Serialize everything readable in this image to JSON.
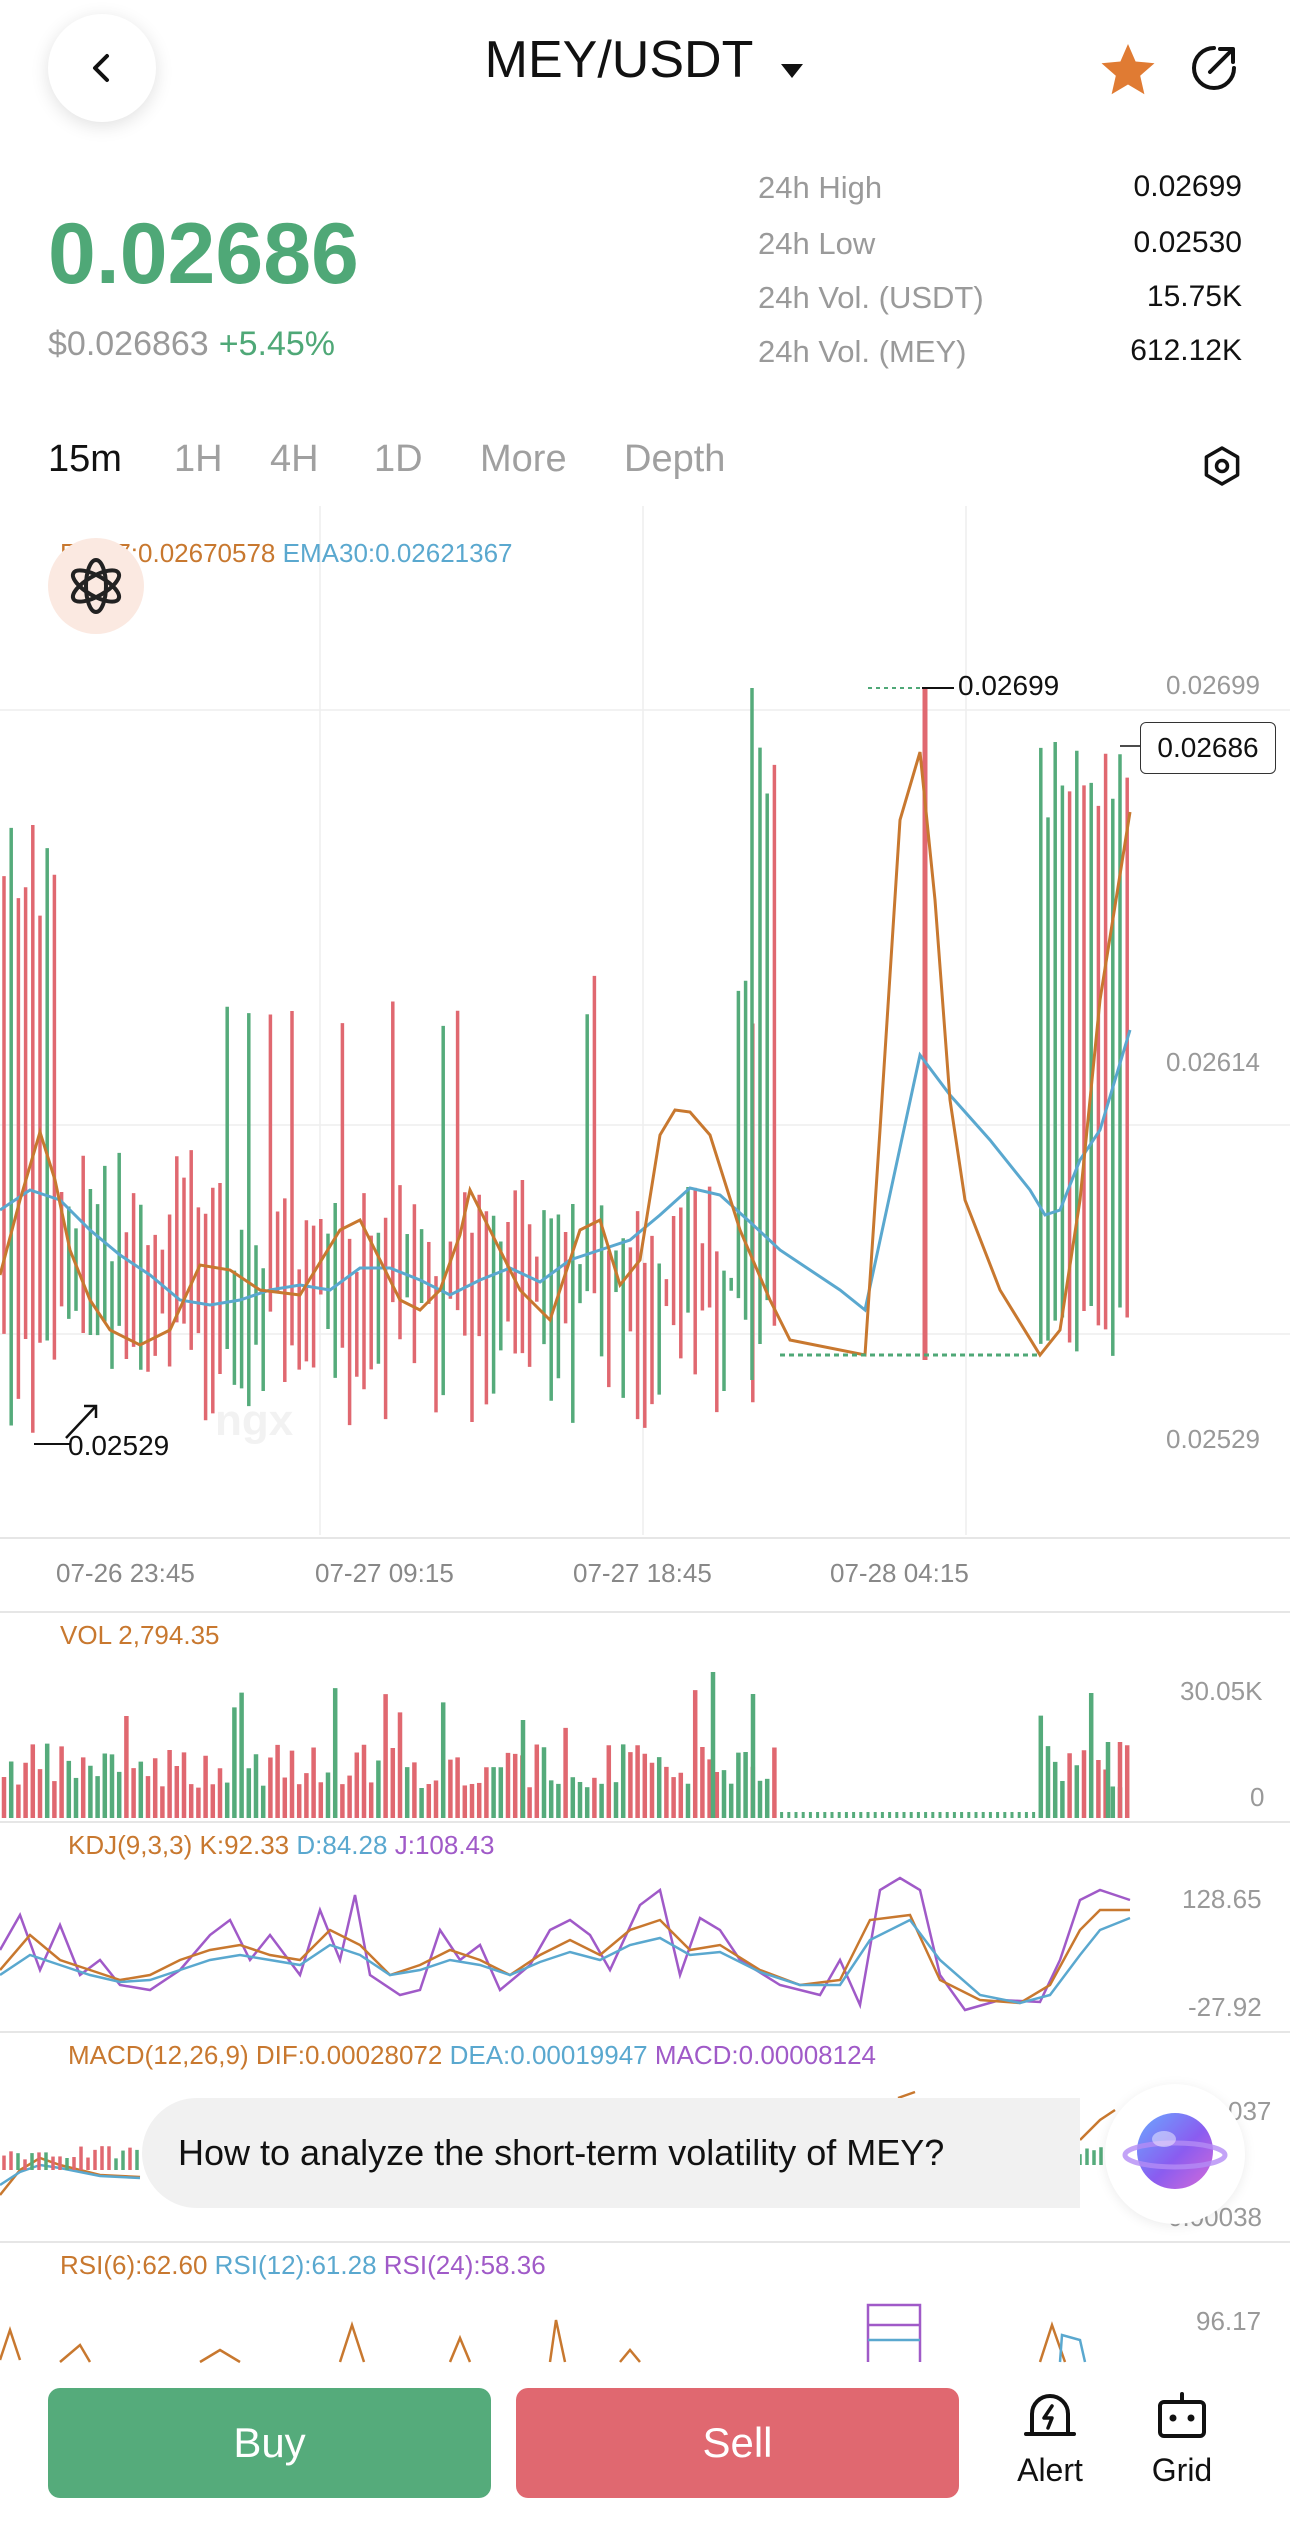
{
  "header": {
    "pair": "MEY/USDT"
  },
  "ticker": {
    "price": "0.02686",
    "usd_price": "$0.026863",
    "change": "+5.45%",
    "stats": [
      {
        "label": "24h High",
        "value": "0.02699"
      },
      {
        "label": "24h Low",
        "value": "0.02530"
      },
      {
        "label": "24h Vol. (USDT)",
        "value": "15.75K"
      },
      {
        "label": "24h Vol. (MEY)",
        "value": "612.12K"
      }
    ]
  },
  "tabs": [
    "15m",
    "1H",
    "4H",
    "1D",
    "More",
    "Depth"
  ],
  "active_tab": "15m",
  "main_chart": {
    "ema_legend": [
      {
        "label": "EMA7:",
        "value": "0.02670578"
      },
      {
        "label": "EMA30:",
        "value": "0.02621367"
      }
    ],
    "y_ticks": [
      "0.02699",
      "0.02614",
      "0.02529"
    ],
    "high_label": "0.02699",
    "low_label": "0.02529",
    "last_price_tag": "0.02686",
    "time_ticks": [
      "07-26 23:45",
      "07-27 09:15",
      "07-27 18:45",
      "07-28 04:15"
    ],
    "watermark": "ngx"
  },
  "vol": {
    "legend": "VOL 2,794.35",
    "y_ticks": [
      "30.05K",
      "0"
    ]
  },
  "kdj": {
    "name": "KDJ(9,3,3)",
    "k_label": "K:",
    "k": "92.33",
    "d_label": "D:",
    "d": "84.28",
    "j_label": "J:",
    "j": "108.43",
    "y_ticks": [
      "128.65",
      "-27.92"
    ]
  },
  "macd": {
    "name": "MACD(12,26,9)",
    "dif_label": "DIF:",
    "dif": "0.00028072",
    "dea_label": "DEA:",
    "dea": "0.00019947",
    "macd_label": "MACD:",
    "macd": "0.00008124",
    "y_ticks": [
      "037",
      "0.00038"
    ]
  },
  "rsi": {
    "r6_label": "RSI(6):",
    "r6": "62.60",
    "r12_label": "RSI(12):",
    "r12": "61.28",
    "r24_label": "RSI(24):",
    "r24": "58.36",
    "y_tick": "96.17"
  },
  "ai_prompt": "How to analyze the short-term volatility of MEY?",
  "bottom": {
    "buy": "Buy",
    "sell": "Sell",
    "alert": "Alert",
    "grid": "Grid"
  },
  "colors": {
    "up": "#55ab7b",
    "down": "#e06870",
    "ema7": "#c8782f",
    "ema30": "#5aa8cf",
    "j_line": "#a05ac8"
  }
}
